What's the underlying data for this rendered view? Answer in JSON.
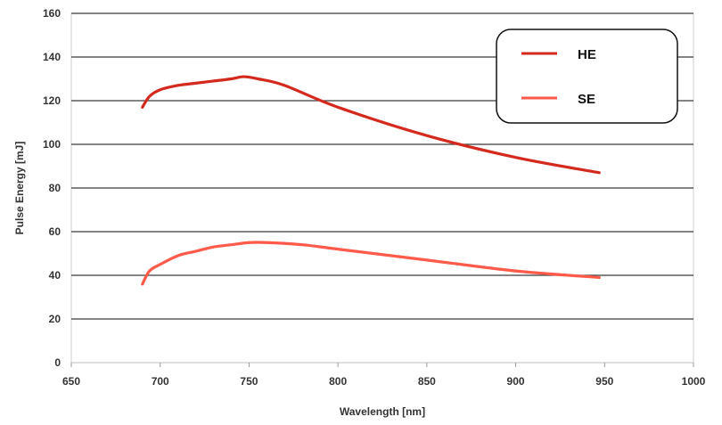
{
  "chart_data": {
    "type": "line",
    "title": "",
    "xlabel": "Wavelength [nm]",
    "ylabel": "Pulse Energy [mJ]",
    "xlim": [
      650,
      1000
    ],
    "ylim": [
      0,
      160
    ],
    "xticks": [
      "650",
      "700",
      "750",
      "800",
      "850",
      "900",
      "950",
      "1000"
    ],
    "yticks": [
      "0",
      "20",
      "40",
      "60",
      "80",
      "100",
      "120",
      "140",
      "160"
    ],
    "grid": "horizontal",
    "legend_position": "top-right",
    "series": [
      {
        "name": "HE",
        "color": "#d42a1e",
        "x": [
          690,
          694,
          700,
          710,
          720,
          730,
          740,
          747,
          755,
          770,
          800,
          850,
          900,
          947
        ],
        "y": [
          117,
          122,
          125,
          127,
          128,
          129,
          130,
          131,
          130,
          127,
          117,
          104,
          94,
          87
        ]
      },
      {
        "name": "SE",
        "color": "#ff5a4a",
        "x": [
          690,
          694,
          700,
          710,
          720,
          730,
          740,
          750,
          760,
          780,
          800,
          850,
          900,
          947
        ],
        "y": [
          36,
          42,
          45,
          49,
          51,
          53,
          54,
          55,
          55,
          54,
          52,
          47,
          42,
          39
        ]
      }
    ]
  }
}
